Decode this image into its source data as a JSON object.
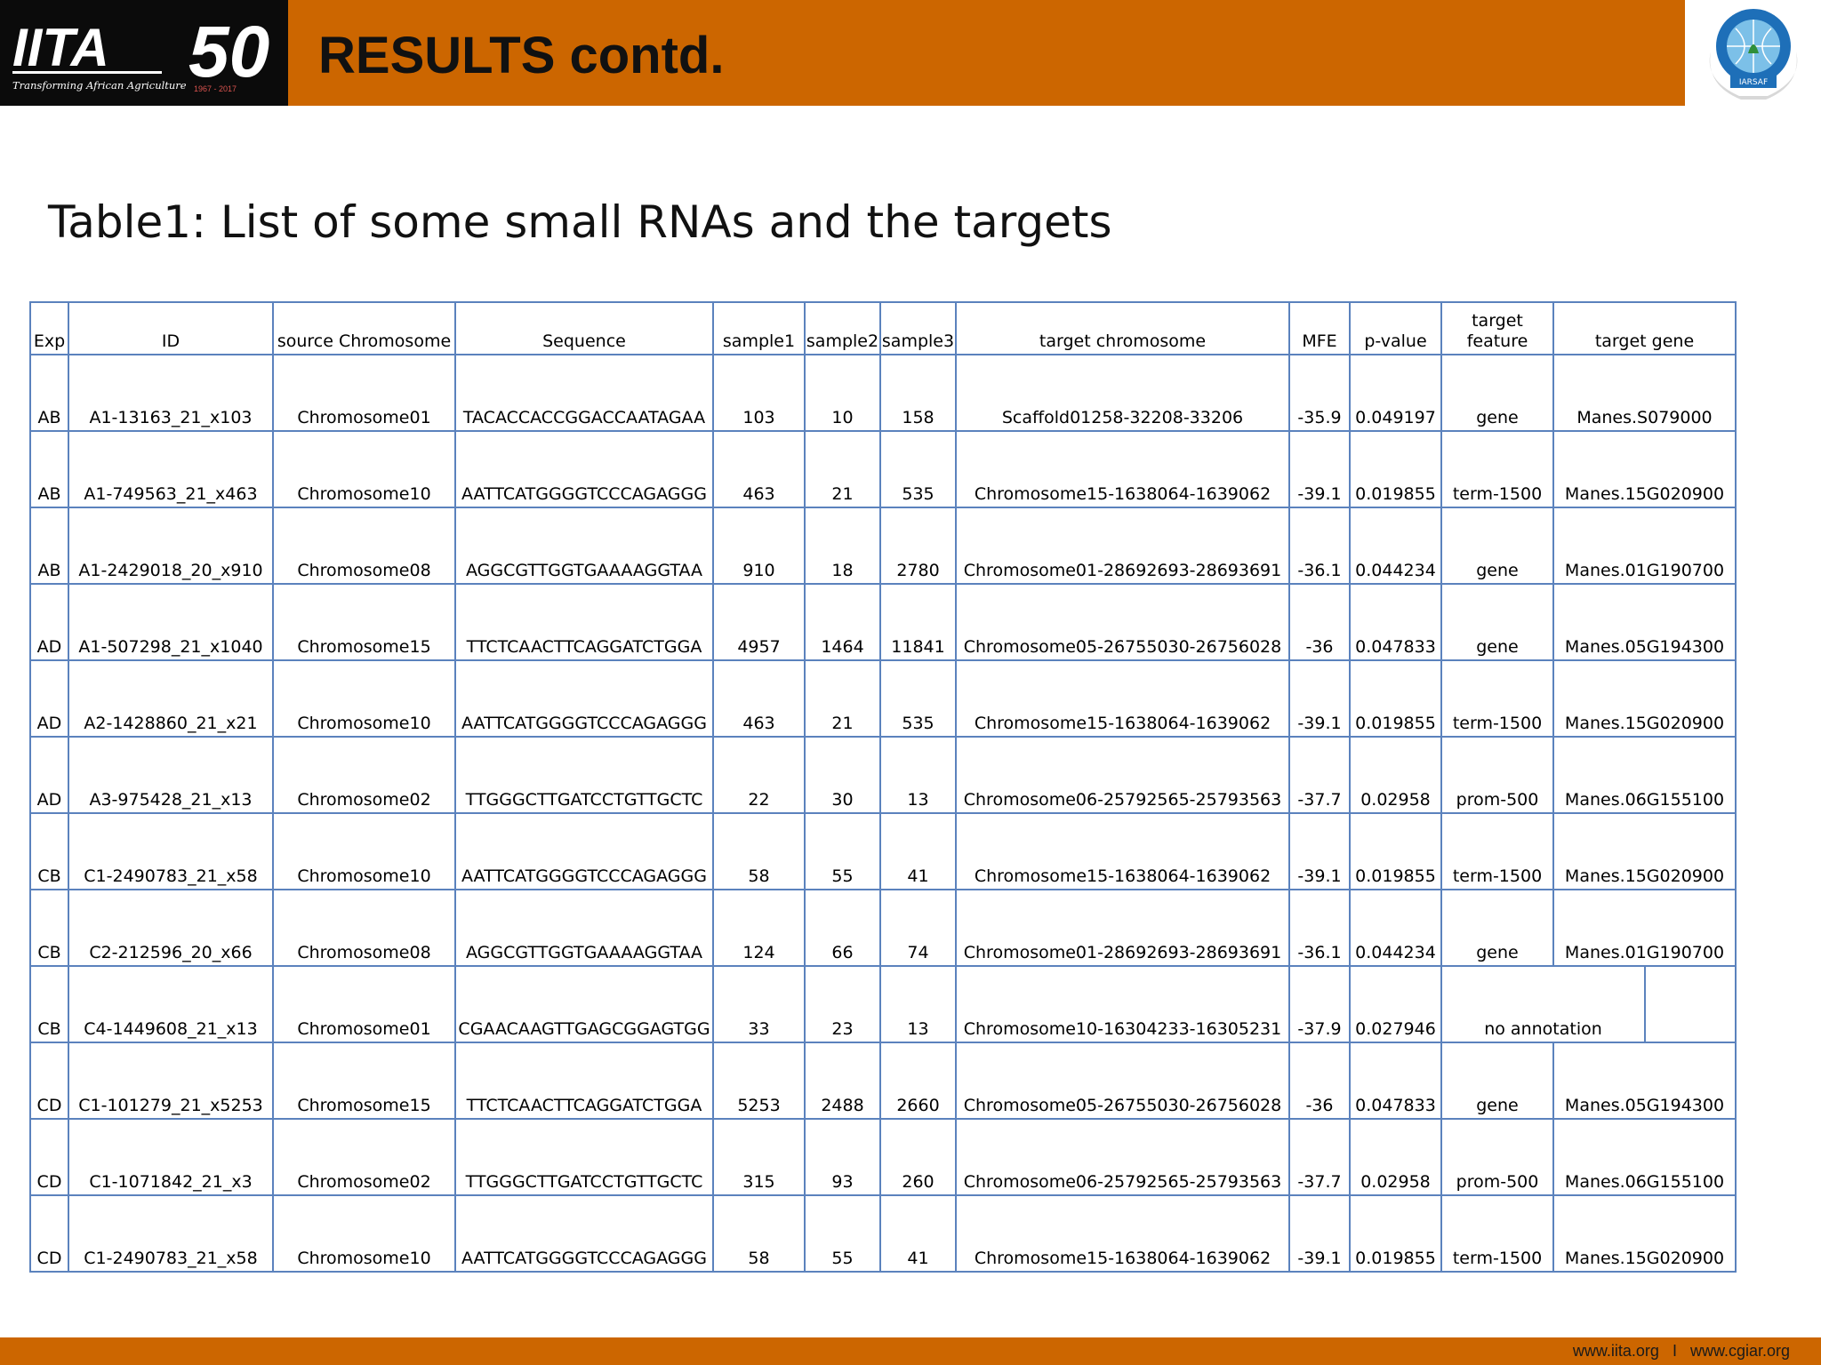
{
  "header": {
    "title": "RESULTS contd.",
    "logo_left": {
      "text": "IITA",
      "anniversary": "50",
      "tagline": "Transforming African Agriculture",
      "years": "1967 - 2017"
    },
    "logo_right": {
      "text": "IARSAF"
    }
  },
  "table_title": "Table1: List of some small RNAs and the targets",
  "table": {
    "columns": [
      "Exp",
      "ID",
      "source Chromosome",
      "Sequence",
      "sample1",
      "sample2",
      "sample3",
      "target chromosome",
      "MFE",
      "p-value",
      "target feature",
      "target gene"
    ],
    "rows": [
      [
        "AB",
        "A1-13163_21_x103",
        "Chromosome01",
        "TACACCACCGGACCAATAGAA",
        "103",
        "10",
        "158",
        "Scaffold01258-32208-33206",
        "-35.9",
        "0.049197",
        "gene",
        "Manes.S079000"
      ],
      [
        "AB",
        "A1-749563_21_x463",
        "Chromosome10",
        "AATTCATGGGGTCCCAGAGGG",
        "463",
        "21",
        "535",
        "Chromosome15-1638064-1639062",
        "-39.1",
        "0.019855",
        "term-1500",
        "Manes.15G020900"
      ],
      [
        "AB",
        "A1-2429018_20_x910",
        "Chromosome08",
        "AGGCGTTGGTGAAAAGGTAA",
        "910",
        "18",
        "2780",
        "Chromosome01-28692693-28693691",
        "-36.1",
        "0.044234",
        "gene",
        "Manes.01G190700"
      ],
      [
        "AD",
        "A1-507298_21_x1040",
        "Chromosome15",
        "TTCTCAACTTCAGGATCTGGA",
        "4957",
        "1464",
        "11841",
        "Chromosome05-26755030-26756028",
        "-36",
        "0.047833",
        "gene",
        "Manes.05G194300"
      ],
      [
        "AD",
        "A2-1428860_21_x21",
        "Chromosome10",
        "AATTCATGGGGTCCCAGAGGG",
        "463",
        "21",
        "535",
        "Chromosome15-1638064-1639062",
        "-39.1",
        "0.019855",
        "term-1500",
        "Manes.15G020900"
      ],
      [
        "AD",
        "A3-975428_21_x13",
        "Chromosome02",
        "TTGGGCTTGATCCTGTTGCTC",
        "22",
        "30",
        "13",
        "Chromosome06-25792565-25793563",
        "-37.7",
        "0.02958",
        "prom-500",
        "Manes.06G155100"
      ],
      [
        "CB",
        "C1-2490783_21_x58",
        "Chromosome10",
        "AATTCATGGGGTCCCAGAGGG",
        "58",
        "55",
        "41",
        "Chromosome15-1638064-1639062",
        "-39.1",
        "0.019855",
        "term-1500",
        "Manes.15G020900"
      ],
      [
        "CB",
        "C2-212596_20_x66",
        "Chromosome08",
        "AGGCGTTGGTGAAAAGGTAA",
        "124",
        "66",
        "74",
        "Chromosome01-28692693-28693691",
        "-36.1",
        "0.044234",
        "gene",
        "Manes.01G190700"
      ],
      [
        "CB",
        "C4-1449608_21_x13",
        "Chromosome01",
        "CGAACAAGTTGAGCGGAGTGG",
        "33",
        "23",
        "13",
        "Chromosome10-16304233-16305231",
        "-37.9",
        "0.027946",
        "no annotation",
        ""
      ],
      [
        "CD",
        "C1-101279_21_x5253",
        "Chromosome15",
        "TTCTCAACTTCAGGATCTGGA",
        "5253",
        "2488",
        "2660",
        "Chromosome05-26755030-26756028",
        "-36",
        "0.047833",
        "gene",
        "Manes.05G194300"
      ],
      [
        "CD",
        "C1-1071842_21_x3",
        "Chromosome02",
        "TTGGGCTTGATCCTGTTGCTC",
        "315",
        "93",
        "260",
        "Chromosome06-25792565-25793563",
        "-37.7",
        "0.02958",
        "prom-500",
        "Manes.06G155100"
      ],
      [
        "CD",
        "C1-2490783_21_x58",
        "Chromosome10",
        "AATTCATGGGGTCCCAGAGGG",
        "58",
        "55",
        "41",
        "Chromosome15-1638064-1639062",
        "-39.1",
        "0.019855",
        "term-1500",
        "Manes.15G020900"
      ]
    ]
  },
  "footer": {
    "text": "www.iita.org   I   www.cgiar.org"
  },
  "colors": {
    "brand_orange": "#cc6600",
    "table_border": "#5b82bd",
    "logo_background": "#0b0b0b",
    "globe_blue": "#1e6fb8"
  }
}
